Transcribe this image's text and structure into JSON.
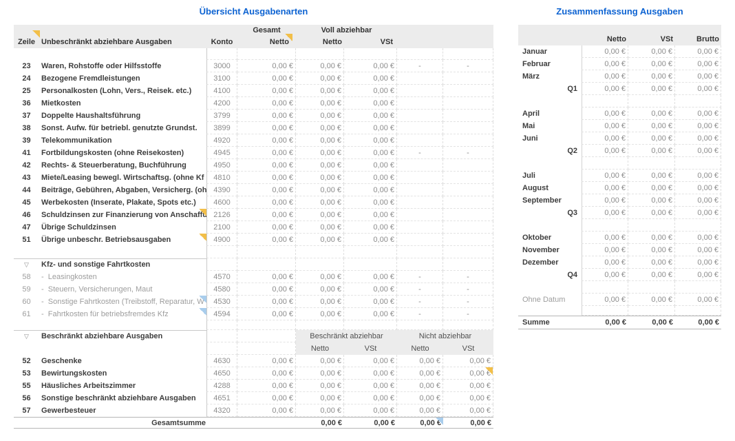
{
  "colors": {
    "title_blue": "#0d63d2",
    "header_band_gray": "#ececec",
    "comment_indicator_yellow": "#f2bf49",
    "annotation_indicator_blue": "#a9cdec"
  },
  "left": {
    "title": "Übersicht Ausgabenarten",
    "disclosure_glyph": "▽",
    "header": {
      "zeile": "Zeile",
      "unbeschraenkt": "Unbeschränkt abziehbare Ausgaben",
      "konto": "Konto",
      "gesamt_group": "Gesamt",
      "voll_group": "Voll abziehbar",
      "netto_gesamt": "Netto",
      "netto_voll": "Netto",
      "vst_voll": "VSt"
    },
    "rows": [
      {
        "t": "blank",
        "h": 17
      },
      {
        "t": "r",
        "z": "23",
        "d": "Waren, Rohstoffe oder Hilfsstoffe",
        "k": "3000",
        "v": [
          "0,00 €",
          "0,00 €",
          "0,00 €",
          "-",
          "-"
        ]
      },
      {
        "t": "r",
        "z": "24",
        "d": "Bezogene Fremdleistungen",
        "k": "3100",
        "v": [
          "0,00 €",
          "0,00 €",
          "0,00 €",
          "",
          ""
        ]
      },
      {
        "t": "r",
        "z": "25",
        "d": "Personalkosten (Lohn, Vers., Reisek. etc.)",
        "k": "4100",
        "v": [
          "0,00 €",
          "0,00 €",
          "0,00 €",
          "",
          ""
        ]
      },
      {
        "t": "r",
        "z": "36",
        "d": "Mietkosten",
        "k": "4200",
        "v": [
          "0,00 €",
          "0,00 €",
          "0,00 €",
          "",
          ""
        ]
      },
      {
        "t": "r",
        "z": "37",
        "d": "Doppelte Haushaltsführung",
        "k": "3799",
        "v": [
          "0,00 €",
          "0,00 €",
          "0,00 €",
          "",
          ""
        ]
      },
      {
        "t": "r",
        "z": "38",
        "d": "Sonst. Aufw. für betriebl. genutzte Grundst.",
        "k": "3899",
        "v": [
          "0,00 €",
          "0,00 €",
          "0,00 €",
          "",
          ""
        ]
      },
      {
        "t": "r",
        "z": "39",
        "d": "Telekommunikation",
        "k": "4920",
        "v": [
          "0,00 €",
          "0,00 €",
          "0,00 €",
          "",
          ""
        ]
      },
      {
        "t": "r",
        "z": "41",
        "d": "Fortbildungskosten (ohne Reisekosten)",
        "k": "4945",
        "v": [
          "0,00 €",
          "0,00 €",
          "0,00 €",
          "-",
          "-"
        ]
      },
      {
        "t": "r",
        "z": "42",
        "d": "Rechts- & Steuerberatung, Buchführung",
        "k": "4950",
        "v": [
          "0,00 €",
          "0,00 €",
          "0,00 €",
          "",
          ""
        ]
      },
      {
        "t": "r",
        "z": "43",
        "d": "Miete/Leasing bewegl. Wirtschaftsg. (ohne Kf",
        "k": "4810",
        "v": [
          "0,00 €",
          "0,00 €",
          "0,00 €",
          "",
          ""
        ]
      },
      {
        "t": "r",
        "z": "44",
        "d": "Beiträge, Gebühren, Abgaben, Versicherg. (oh",
        "k": "4390",
        "v": [
          "0,00 €",
          "0,00 €",
          "0,00 €",
          "",
          ""
        ]
      },
      {
        "t": "r",
        "z": "45",
        "d": "Werbekosten (Inserate, Plakate, Spots etc.)",
        "k": "4600",
        "v": [
          "0,00 €",
          "0,00 €",
          "0,00 €",
          "",
          ""
        ]
      },
      {
        "t": "r",
        "z": "46",
        "d": "Schuldzinsen zur Finanzierung von Anschaffu",
        "k": "2126",
        "dm": "yellow",
        "v": [
          "0,00 €",
          "0,00 €",
          "0,00 €",
          "",
          ""
        ]
      },
      {
        "t": "r",
        "z": "47",
        "d": "Übrige Schuldzinsen",
        "k": "2100",
        "v": [
          "0,00 €",
          "0,00 €",
          "0,00 €",
          "",
          ""
        ]
      },
      {
        "t": "r",
        "z": "51",
        "d": "Übrige unbeschr. Betriebsausgaben",
        "k": "4900",
        "dm": "yellow",
        "v": [
          "0,00 €",
          "0,00 €",
          "0,00 €",
          "",
          ""
        ]
      },
      {
        "t": "blank",
        "h": 18
      },
      {
        "t": "sec",
        "d": "Kfz- und sonstige Fahrtkosten"
      },
      {
        "t": "r",
        "z": "58",
        "d": "-  Leasingkosten",
        "k": "4570",
        "muted": true,
        "v": [
          "0,00 €",
          "0,00 €",
          "0,00 €",
          "-",
          "-"
        ]
      },
      {
        "t": "r",
        "z": "59",
        "d": "-  Steuern, Versicherungen, Maut",
        "k": "4580",
        "muted": true,
        "v": [
          "0,00 €",
          "0,00 €",
          "0,00 €",
          "-",
          "-"
        ]
      },
      {
        "t": "r",
        "z": "60",
        "d": "-  Sonstige Fahrtkosten (Treibstoff, Reparatur, W",
        "k": "4530",
        "muted": true,
        "dm": "blue",
        "v": [
          "0,00 €",
          "0,00 €",
          "0,00 €",
          "-",
          "-"
        ]
      },
      {
        "t": "r",
        "z": "61",
        "d": "-  Fahrtkosten für betriebsfremdes Kfz",
        "k": "4594",
        "muted": true,
        "dm": "blue",
        "v": [
          "0,00 €",
          "0,00 €",
          "0,00 €",
          "-",
          "-"
        ]
      },
      {
        "t": "blank",
        "h": 14
      },
      {
        "t": "sec2",
        "d": "Beschränkt abziehbare Ausgaben",
        "g1": "Beschränkt abziehbar",
        "g2": "Nicht abziehbar"
      },
      {
        "t": "sub",
        "l": [
          "Netto",
          "VSt",
          "Netto",
          "VSt"
        ]
      },
      {
        "t": "r",
        "z": "52",
        "d": "Geschenke",
        "k": "4630",
        "v": [
          "0,00 €",
          "0,00 €",
          "0,00 €",
          "0,00 €",
          "0,00 €"
        ]
      },
      {
        "t": "r",
        "z": "53",
        "d": "Bewirtungskosten",
        "k": "4650",
        "vm": [
          4,
          "yellow"
        ],
        "v": [
          "0,00 €",
          "0,00 €",
          "0,00 €",
          "0,00 €",
          "0,00 €"
        ]
      },
      {
        "t": "r",
        "z": "55",
        "d": "Häusliches Arbeitszimmer",
        "k": "4288",
        "v": [
          "0,00 €",
          "0,00 €",
          "0,00 €",
          "0,00 €",
          "0,00 €"
        ]
      },
      {
        "t": "r",
        "z": "56",
        "d": "Sonstige beschränkt abziehbare Ausgaben",
        "k": "4651",
        "v": [
          "0,00 €",
          "0,00 €",
          "0,00 €",
          "0,00 €",
          "0,00 €"
        ]
      },
      {
        "t": "r",
        "z": "57",
        "d": "Gewerbesteuer",
        "k": "4320",
        "v": [
          "0,00 €",
          "0,00 €",
          "0,00 €",
          "0,00 €",
          "0,00 €"
        ]
      },
      {
        "t": "total",
        "h": 17,
        "d": "Gesamtsumme",
        "vm": [
          3,
          "blue"
        ],
        "v": [
          "",
          "0,00 €",
          "0,00 €",
          "0,00 €",
          "0,00 €"
        ]
      }
    ]
  },
  "right": {
    "title": "Zusammenfassung Ausgaben",
    "header": {
      "netto": "Netto",
      "vst": "VSt",
      "brutto": "Brutto"
    },
    "rows": [
      {
        "t": "r",
        "l": "Januar",
        "v": [
          "0,00 €",
          "0,00 €",
          "0,00 €"
        ]
      },
      {
        "t": "r",
        "l": "Februar",
        "v": [
          "0,00 €",
          "0,00 €",
          "0,00 €"
        ]
      },
      {
        "t": "r",
        "l": "März",
        "v": [
          "0,00 €",
          "0,00 €",
          "0,00 €"
        ]
      },
      {
        "t": "r",
        "l": "Q1",
        "q": true,
        "v": [
          "0,00 €",
          "0,00 €",
          "0,00 €"
        ]
      },
      {
        "t": "blank",
        "h": 18
      },
      {
        "t": "r",
        "l": "April",
        "v": [
          "0,00 €",
          "0,00 €",
          "0,00 €"
        ]
      },
      {
        "t": "r",
        "l": "Mai",
        "v": [
          "0,00 €",
          "0,00 €",
          "0,00 €"
        ]
      },
      {
        "t": "r",
        "l": "Juni",
        "v": [
          "0,00 €",
          "0,00 €",
          "0,00 €"
        ]
      },
      {
        "t": "r",
        "l": "Q2",
        "q": true,
        "v": [
          "0,00 €",
          "0,00 €",
          "0,00 €"
        ]
      },
      {
        "t": "blank",
        "h": 18
      },
      {
        "t": "r",
        "l": "Juli",
        "v": [
          "0,00 €",
          "0,00 €",
          "0,00 €"
        ]
      },
      {
        "t": "r",
        "l": "August",
        "v": [
          "0,00 €",
          "0,00 €",
          "0,00 €"
        ]
      },
      {
        "t": "r",
        "l": "September",
        "v": [
          "0,00 €",
          "0,00 €",
          "0,00 €"
        ]
      },
      {
        "t": "r",
        "l": "Q3",
        "q": true,
        "v": [
          "0,00 €",
          "0,00 €",
          "0,00 €"
        ]
      },
      {
        "t": "blank",
        "h": 18
      },
      {
        "t": "r",
        "l": "Oktober",
        "v": [
          "0,00 €",
          "0,00 €",
          "0,00 €"
        ]
      },
      {
        "t": "r",
        "l": "November",
        "v": [
          "0,00 €",
          "0,00 €",
          "0,00 €"
        ]
      },
      {
        "t": "r",
        "l": "Dezember",
        "v": [
          "0,00 €",
          "0,00 €",
          "0,00 €"
        ]
      },
      {
        "t": "r",
        "l": "Q4",
        "q": true,
        "v": [
          "0,00 €",
          "0,00 €",
          "0,00 €"
        ]
      },
      {
        "t": "blank",
        "h": 18
      },
      {
        "t": "r",
        "l": "Ohne Datum",
        "muted": true,
        "v": [
          "0,00 €",
          "0,00 €",
          "0,00 €"
        ]
      },
      {
        "t": "blank",
        "h": 14
      },
      {
        "t": "total",
        "h": 20,
        "l": "Summe",
        "v": [
          "0,00 €",
          "0,00 €",
          "0,00 €"
        ]
      }
    ]
  }
}
